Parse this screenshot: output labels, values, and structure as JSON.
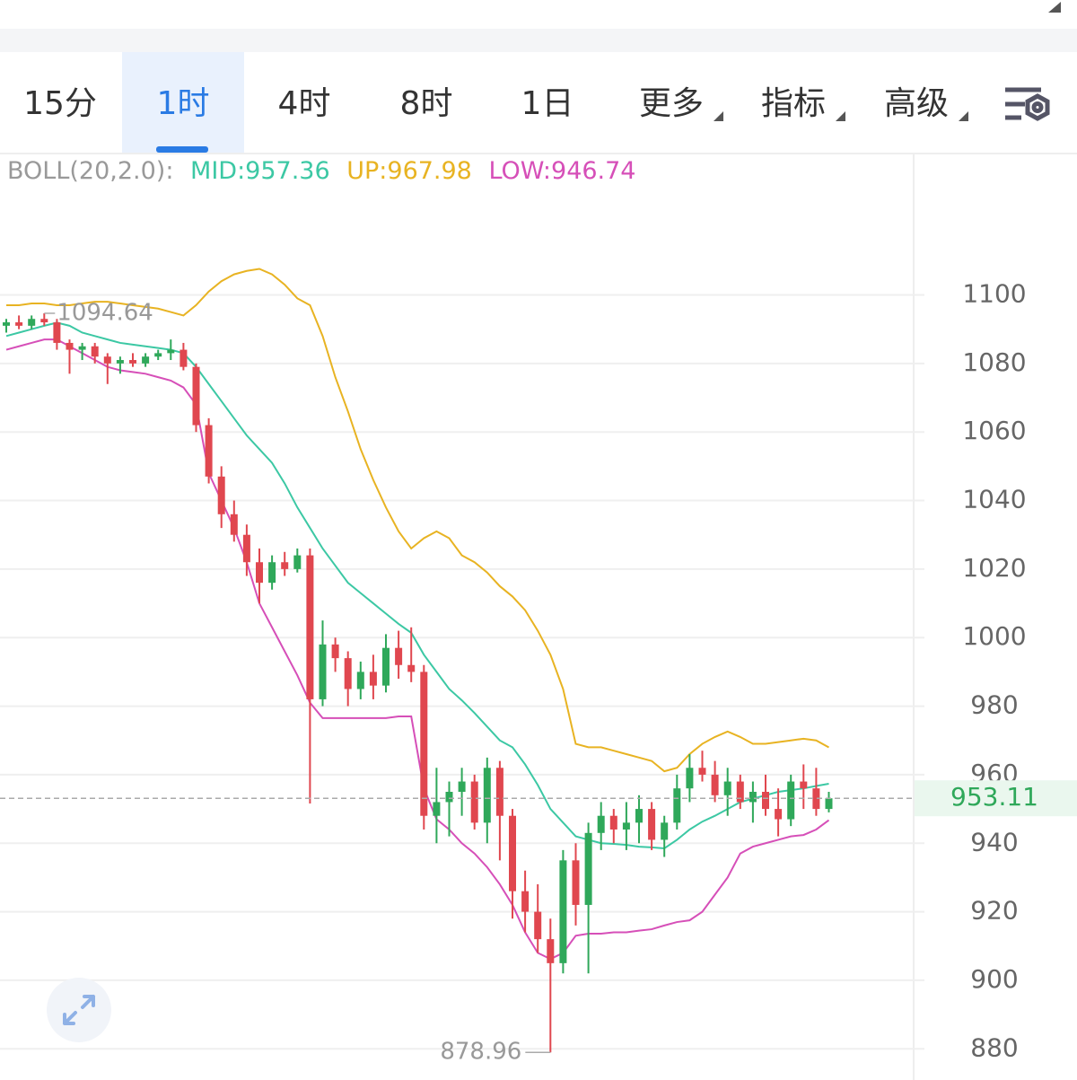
{
  "tabs": [
    "15分",
    "1时",
    "4时",
    "8时",
    "1日",
    "更多",
    "指标",
    "高级"
  ],
  "active_tab": 1,
  "indicator": {
    "name": "BOLL(20,2.0):",
    "mid": "MID:957.36",
    "up": "UP:967.98",
    "low": "LOW:946.74"
  },
  "chart_data": {
    "type": "candlestick",
    "ylim": [
      873,
      1141
    ],
    "yticks": [
      1100,
      1080,
      1060,
      1040,
      1020,
      1000,
      980,
      960,
      940,
      920,
      900,
      880
    ],
    "grid": true,
    "up_color": "#2fa85a",
    "down_color": "#e0474f",
    "open": [
      1091,
      1092,
      1091,
      1093,
      1092,
      1086,
      1084,
      1085,
      1082,
      1080,
      1081,
      1080,
      1082,
      1083,
      1084,
      1079,
      1062,
      1047,
      1036,
      1030,
      1022,
      1016,
      1022,
      1020,
      1024,
      982,
      998,
      994,
      985,
      990,
      986,
      997,
      992,
      990,
      948,
      952,
      955,
      958,
      946,
      962,
      948,
      926,
      920,
      912,
      905,
      935,
      922,
      943,
      948,
      944,
      946,
      950,
      941,
      946,
      956,
      962,
      960,
      954,
      958,
      952,
      955,
      950,
      947,
      958,
      956,
      950
    ],
    "high": [
      1093,
      1094,
      1094,
      1094.64,
      1093,
      1087,
      1086,
      1086,
      1083,
      1082,
      1083,
      1083,
      1084,
      1087,
      1086,
      1080,
      1064,
      1050,
      1040,
      1033,
      1026,
      1024,
      1025,
      1026,
      1026,
      1005,
      1000,
      996,
      993,
      995,
      1001,
      1002,
      1003,
      992,
      962,
      958,
      962,
      960,
      965,
      964,
      950,
      932,
      928,
      918,
      938,
      940,
      946,
      952,
      950,
      952,
      954,
      952,
      948,
      960,
      966,
      967,
      964,
      962,
      960,
      958,
      960,
      956,
      960,
      963,
      962,
      955
    ],
    "low": [
      1089,
      1090,
      1090,
      1091,
      1084,
      1077,
      1081,
      1080,
      1074,
      1077,
      1079,
      1079,
      1081,
      1081,
      1078,
      1060,
      1045,
      1032,
      1028,
      1018,
      1010,
      1014,
      1018,
      1019,
      951.6,
      980,
      990,
      980,
      982,
      982,
      984,
      988,
      987,
      944,
      940,
      942,
      948,
      944,
      940,
      935,
      918,
      914,
      908,
      878.96,
      902,
      916,
      902,
      938,
      940,
      938,
      940,
      938,
      936,
      944,
      952,
      958,
      952,
      948,
      950,
      946,
      948,
      942,
      945,
      950,
      948,
      949
    ],
    "close": [
      1092,
      1091,
      1093,
      1092,
      1086,
      1084,
      1085,
      1082,
      1080,
      1081,
      1080,
      1082,
      1083,
      1084,
      1079,
      1062,
      1047,
      1036,
      1030,
      1022,
      1016,
      1022,
      1020,
      1024,
      982,
      998,
      994,
      985,
      990,
      986,
      997,
      992,
      990,
      948,
      952,
      955,
      958,
      946,
      962,
      948,
      926,
      920,
      912,
      905,
      935,
      922,
      943,
      948,
      944,
      946,
      950,
      941,
      946,
      956,
      962,
      960,
      954,
      958,
      952,
      955,
      950,
      947,
      958,
      956,
      950,
      953.11
    ],
    "series": [
      {
        "color": "#3cc8a4",
        "values": [
          1088,
          1089,
          1090,
          1091,
          1091.9,
          1091,
          1089,
          1088,
          1087,
          1086,
          1085.5,
          1085,
          1084.5,
          1084,
          1083,
          1079,
          1074,
          1069,
          1064,
          1059,
          1055,
          1051,
          1045,
          1038,
          1032,
          1026,
          1021,
          1016,
          1013,
          1010,
          1007,
          1004,
          1001.4,
          995,
          990,
          985,
          981.7,
          978,
          974,
          970,
          968,
          963,
          957,
          950,
          946,
          942,
          941,
          940,
          939.8,
          939.5,
          939,
          938.8,
          938.5,
          941,
          944,
          946.3,
          948,
          950,
          952,
          953,
          954,
          955,
          955.5,
          956,
          956.7,
          957.36
        ]
      },
      {
        "color": "#e8b322",
        "values": [
          1097,
          1097,
          1097.5,
          1097.5,
          1097,
          1097,
          1097.5,
          1098,
          1098,
          1097.5,
          1097,
          1096.5,
          1096,
          1095,
          1094,
          1097,
          1101,
          1104,
          1106,
          1107,
          1107.6,
          1106,
          1103,
          1099,
          1097,
          1088,
          1076,
          1066,
          1055,
          1046,
          1038,
          1031,
          1026,
          1029,
          1031,
          1029,
          1024,
          1022,
          1019,
          1015,
          1012,
          1008,
          1002,
          995,
          985,
          969,
          968,
          968,
          967,
          966,
          965,
          964,
          961,
          962,
          966,
          969,
          971,
          972.6,
          971,
          969,
          969,
          969.5,
          970,
          970.5,
          970,
          967.98
        ]
      },
      {
        "color": "#d64fb8",
        "values": [
          1084,
          1085,
          1086,
          1087,
          1087,
          1085,
          1083,
          1081,
          1079,
          1078,
          1077.5,
          1077,
          1076,
          1075,
          1073,
          1068,
          1048,
          1040,
          1032,
          1022,
          1010,
          1003,
          996,
          989,
          981,
          976.5,
          976.5,
          976.5,
          976.5,
          976.5,
          976.5,
          977,
          977,
          956,
          947,
          944,
          940,
          937,
          933,
          928,
          922,
          914,
          908,
          906.2,
          908,
          913,
          913.6,
          913.6,
          914,
          914,
          914.5,
          914.9,
          916,
          917,
          917.5,
          920,
          925,
          930,
          937,
          939,
          940,
          941,
          942,
          942.4,
          944,
          946.74
        ]
      }
    ]
  }
}
